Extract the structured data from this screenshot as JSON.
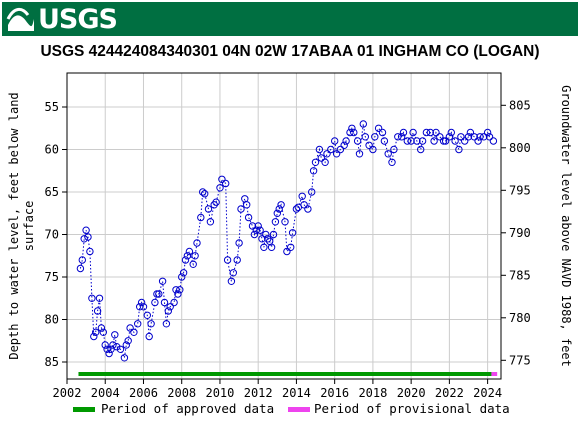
{
  "header": {
    "agency": "USGS",
    "logo_icon": "usgs-wave-icon",
    "bar_color": "#006f41"
  },
  "chart_data": {
    "type": "scatter",
    "title": "USGS 424424084340301 04N 02W 17ABAA 01 INGHAM CO (LOGAN)",
    "ylabel_left_line1": "Depth to water level, feet below land",
    "ylabel_left_line2": "surface",
    "ylabel_right": "Groundwater level above NAVD 1988, feet",
    "x_ticks": [
      "2002",
      "2004",
      "2006",
      "2008",
      "2010",
      "2012",
      "2014",
      "2016",
      "2018",
      "2020",
      "2022",
      "2024"
    ],
    "y_ticks_left": [
      "55",
      "60",
      "65",
      "70",
      "75",
      "80",
      "85"
    ],
    "y_ticks_right": [
      "775",
      "780",
      "785",
      "790",
      "795",
      "800",
      "805"
    ],
    "xlim": [
      2002.0,
      2024.7
    ],
    "ylim_left": [
      51.0,
      87.0
    ],
    "y_inverted": true,
    "right_axis_offset": 859.8,
    "grid": true,
    "marker_color": "#0000cc",
    "series": [
      {
        "name": "Depth to water level",
        "x": [
          2002.7,
          2002.8,
          2002.9,
          2003.0,
          2003.1,
          2003.2,
          2003.3,
          2003.4,
          2003.5,
          2003.6,
          2003.7,
          2003.8,
          2003.9,
          2004.0,
          2004.1,
          2004.2,
          2004.3,
          2004.4,
          2004.5,
          2004.6,
          2004.8,
          2005.0,
          2005.1,
          2005.2,
          2005.3,
          2005.5,
          2005.7,
          2005.8,
          2005.9,
          2006.0,
          2006.2,
          2006.3,
          2006.4,
          2006.6,
          2006.7,
          2006.8,
          2007.0,
          2007.1,
          2007.2,
          2007.3,
          2007.4,
          2007.6,
          2007.7,
          2007.8,
          2007.9,
          2008.0,
          2008.1,
          2008.2,
          2008.3,
          2008.4,
          2008.6,
          2008.7,
          2008.8,
          2009.0,
          2009.1,
          2009.2,
          2009.4,
          2009.5,
          2009.7,
          2009.8,
          2010.0,
          2010.1,
          2010.3,
          2010.4,
          2010.6,
          2010.7,
          2010.9,
          2011.0,
          2011.1,
          2011.3,
          2011.4,
          2011.5,
          2011.7,
          2011.8,
          2011.9,
          2012.0,
          2012.1,
          2012.2,
          2012.3,
          2012.4,
          2012.5,
          2012.6,
          2012.7,
          2012.8,
          2012.9,
          2013.0,
          2013.1,
          2013.2,
          2013.4,
          2013.5,
          2013.7,
          2013.8,
          2014.0,
          2014.1,
          2014.3,
          2014.4,
          2014.6,
          2014.8,
          2014.9,
          2015.0,
          2015.2,
          2015.3,
          2015.5,
          2015.6,
          2015.8,
          2016.0,
          2016.1,
          2016.3,
          2016.5,
          2016.6,
          2016.8,
          2016.9,
          2017.0,
          2017.2,
          2017.3,
          2017.5,
          2017.6,
          2017.8,
          2018.0,
          2018.1,
          2018.3,
          2018.5,
          2018.6,
          2018.8,
          2019.0,
          2019.1,
          2019.3,
          2019.5,
          2019.6,
          2019.8,
          2020.0,
          2020.1,
          2020.3,
          2020.5,
          2020.6,
          2020.8,
          2021.0,
          2021.2,
          2021.3,
          2021.5,
          2021.7,
          2021.8,
          2022.0,
          2022.1,
          2022.3,
          2022.5,
          2022.6,
          2022.8,
          2023.0,
          2023.1,
          2023.3,
          2023.5,
          2023.6,
          2023.8,
          2024.0,
          2024.1,
          2024.3
        ],
        "y": [
          74.0,
          73.0,
          70.5,
          69.5,
          70.3,
          72.0,
          77.5,
          82.0,
          81.5,
          79.0,
          77.5,
          81.0,
          81.5,
          83.0,
          83.5,
          84.0,
          83.5,
          83.0,
          81.8,
          83.2,
          83.5,
          84.5,
          83.0,
          82.5,
          81.0,
          81.5,
          80.5,
          78.5,
          78.0,
          78.5,
          79.5,
          82.0,
          80.5,
          78.0,
          77.0,
          77.0,
          75.5,
          78.0,
          80.5,
          79.0,
          78.5,
          78.0,
          76.5,
          77.0,
          76.5,
          75.0,
          74.5,
          73.0,
          72.5,
          72.0,
          73.5,
          72.5,
          71.0,
          68.0,
          65.0,
          65.2,
          67.0,
          68.5,
          66.5,
          66.2,
          64.5,
          63.5,
          64.0,
          73.0,
          75.5,
          74.5,
          73.0,
          71.0,
          67.0,
          65.8,
          66.5,
          68.0,
          69.0,
          70.0,
          69.5,
          69.0,
          69.5,
          70.5,
          71.5,
          70.0,
          70.5,
          70.8,
          71.5,
          70.0,
          68.5,
          67.5,
          67.0,
          66.5,
          68.5,
          72.0,
          71.5,
          69.8,
          67.0,
          66.8,
          65.5,
          66.5,
          67.0,
          65.0,
          62.5,
          61.5,
          60.0,
          61.0,
          61.5,
          60.5,
          60.0,
          59.0,
          60.5,
          60.0,
          59.5,
          59.0,
          58.0,
          57.5,
          58.0,
          59.0,
          60.5,
          57.0,
          58.5,
          59.5,
          60.0,
          58.5,
          57.5,
          58.0,
          59.0,
          60.5,
          61.5,
          60.0,
          58.5,
          58.5,
          58.0,
          59.0,
          59.0,
          58.0,
          59.0,
          60.0,
          59.0,
          58.0,
          58.0,
          59.0,
          58.0,
          58.5,
          59.0,
          59.0,
          58.5,
          58.0,
          59.0,
          60.0,
          58.5,
          59.0,
          58.5,
          58.0,
          58.5,
          59.0,
          58.5,
          58.5,
          58.0,
          58.5,
          59.0
        ]
      }
    ]
  },
  "legend": {
    "approved_label": "Period of approved data",
    "provisional_label": "Period of provisional data",
    "approved_color": "#009900",
    "provisional_color": "#ee44ee",
    "approved_range": [
      2002.6,
      2024.2
    ],
    "provisional_range": [
      2024.2,
      2024.5
    ]
  }
}
